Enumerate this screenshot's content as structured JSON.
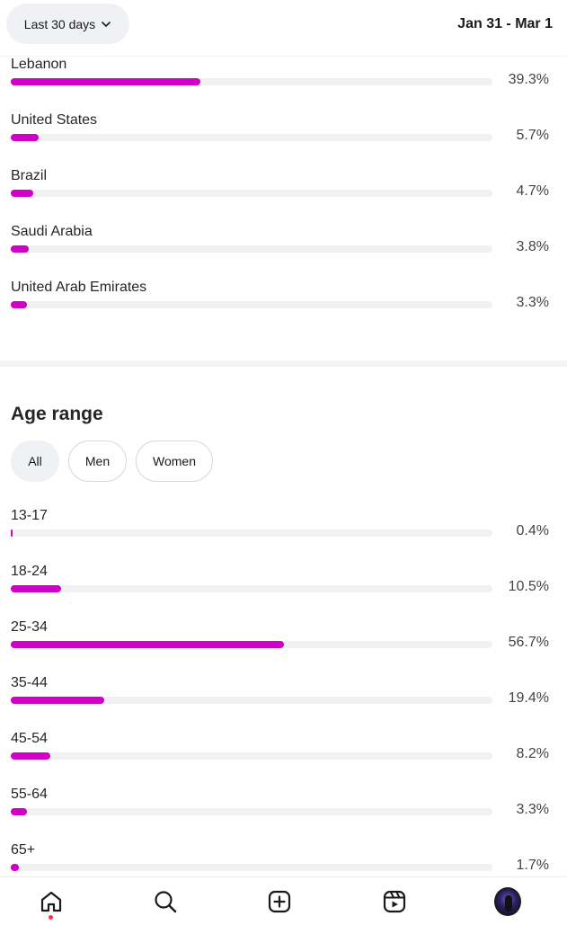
{
  "header": {
    "range_label": "Last 30 days",
    "date_range": "Jan 31 - Mar 1"
  },
  "countries": [
    {
      "label": "Lebanon",
      "percent_text": "39.3%",
      "value": 39.3
    },
    {
      "label": "United States",
      "percent_text": "5.7%",
      "value": 5.7
    },
    {
      "label": "Brazil",
      "percent_text": "4.7%",
      "value": 4.7
    },
    {
      "label": "Saudi Arabia",
      "percent_text": "3.8%",
      "value": 3.8
    },
    {
      "label": "United Arab Emirates",
      "percent_text": "3.3%",
      "value": 3.3
    }
  ],
  "age_section": {
    "title": "Age range",
    "chips": [
      "All",
      "Men",
      "Women"
    ],
    "selected": "All",
    "ranges": [
      {
        "label": "13-17",
        "percent_text": "0.4%",
        "value": 0.4
      },
      {
        "label": "18-24",
        "percent_text": "10.5%",
        "value": 10.5
      },
      {
        "label": "25-34",
        "percent_text": "56.7%",
        "value": 56.7
      },
      {
        "label": "35-44",
        "percent_text": "19.4%",
        "value": 19.4
      },
      {
        "label": "45-54",
        "percent_text": "8.2%",
        "value": 8.2
      },
      {
        "label": "55-64",
        "percent_text": "3.3%",
        "value": 3.3
      },
      {
        "label": "65+",
        "percent_text": "1.7%",
        "value": 1.7
      }
    ]
  },
  "bar_color": "#d000c7",
  "nav": {
    "items": [
      "home-icon",
      "search-icon",
      "create-icon",
      "reels-icon",
      "profile-avatar"
    ],
    "active": "home-icon"
  }
}
